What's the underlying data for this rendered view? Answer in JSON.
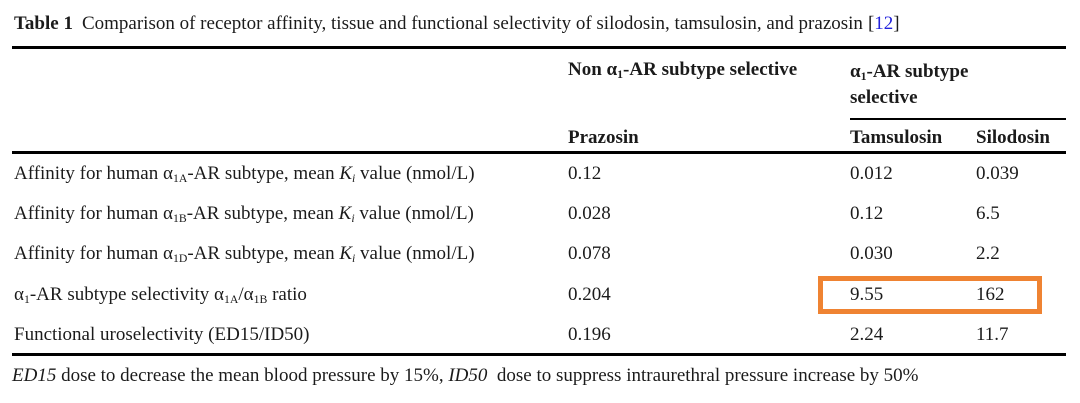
{
  "colors": {
    "text": "#1b1b1b",
    "citation_blue": "#2222dd",
    "highlight_orange": "#ef8332"
  },
  "caption": {
    "label": "Table 1",
    "text": "Comparison of receptor affinity, tissue and functional selectivity of silodosin, tamsulosin, and prazosin",
    "citation_open": "[",
    "citation_number": "12",
    "citation_close": "]"
  },
  "header": {
    "group_non_selective": [
      {
        "t": "Non α"
      },
      {
        "t": "1",
        "sub": true
      },
      {
        "t": "-AR subtype selective"
      }
    ],
    "group_selective": [
      {
        "t": "α"
      },
      {
        "t": "1",
        "sub": true
      },
      {
        "t": "-AR subtype selective"
      }
    ],
    "columns": [
      "Prazosin",
      "Tamsulosin",
      "Silodosin"
    ]
  },
  "rows": [
    {
      "label": [
        {
          "t": "Affinity for human α"
        },
        {
          "t": "1A",
          "sub": true
        },
        {
          "t": "-AR subtype, mean "
        },
        {
          "t": "K",
          "i": true
        },
        {
          "t": "i",
          "sub": true,
          "i": true
        },
        {
          "t": " value (nmol/L)"
        }
      ],
      "values": [
        "0.12",
        "0.012",
        "0.039"
      ]
    },
    {
      "label": [
        {
          "t": "Affinity for human α"
        },
        {
          "t": "1B",
          "sub": true
        },
        {
          "t": "-AR subtype, mean "
        },
        {
          "t": "K",
          "i": true
        },
        {
          "t": "i",
          "sub": true,
          "i": true
        },
        {
          "t": " value (nmol/L)"
        }
      ],
      "values": [
        "0.028",
        "0.12",
        "6.5"
      ]
    },
    {
      "label": [
        {
          "t": "Affinity for human α"
        },
        {
          "t": "1D",
          "sub": true
        },
        {
          "t": "-AR subtype, mean "
        },
        {
          "t": "K",
          "i": true
        },
        {
          "t": "i",
          "sub": true,
          "i": true
        },
        {
          "t": " value (nmol/L)"
        }
      ],
      "values": [
        "0.078",
        "0.030",
        "2.2"
      ]
    },
    {
      "label": [
        {
          "t": "α"
        },
        {
          "t": "1",
          "sub": true
        },
        {
          "t": "-AR subtype selectivity α"
        },
        {
          "t": "1A",
          "sub": true
        },
        {
          "t": "/α"
        },
        {
          "t": "1B",
          "sub": true
        },
        {
          "t": " ratio"
        }
      ],
      "values": [
        "0.204",
        "9.55",
        "162"
      ],
      "highlighted_columns": [
        "Tamsulosin",
        "Silodosin"
      ]
    },
    {
      "label": [
        {
          "t": "Functional uroselectivity (ED15/ID50)"
        }
      ],
      "values": [
        "0.196",
        "2.24",
        "11.7"
      ]
    }
  ],
  "footnote": [
    {
      "t": "ED15",
      "i": true
    },
    {
      "t": " dose to decrease the mean blood pressure by 15%, "
    },
    {
      "t": "ID50",
      "i": true
    },
    {
      "t": "  dose to suppress intraurethral pressure increase by 50%"
    }
  ]
}
